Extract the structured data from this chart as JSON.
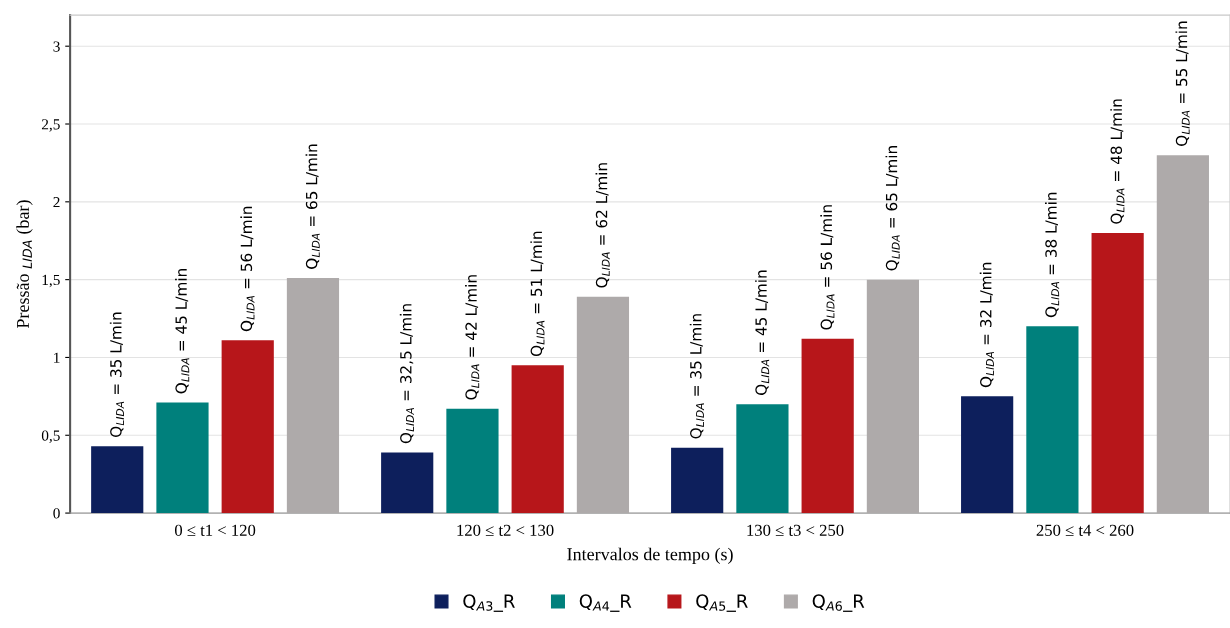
{
  "chart_data": {
    "type": "bar",
    "xlabel": "Intervalos de tempo (s)",
    "ylabel": "Pressão $_{LIDA}$ (bar)",
    "categories": [
      "0 ≤ t1 < 120",
      "120 ≤ t2 < 130",
      "130 ≤ t3 < 250",
      "250 ≤ t4 < 260"
    ],
    "series": [
      {
        "name": "Q$_{A3}$_R",
        "color": "#0d1f5c",
        "values": [
          0.43,
          0.39,
          0.42,
          0.75
        ]
      },
      {
        "name": "Q$_{A4}$_R",
        "color": "#00807c",
        "values": [
          0.71,
          0.67,
          0.7,
          1.2
        ]
      },
      {
        "name": "Q$_{A5}$_R",
        "color": "#b7161a",
        "values": [
          1.11,
          0.95,
          1.12,
          1.8
        ]
      },
      {
        "name": "Q$_{A6}$_R",
        "color": "#aeaaaa",
        "values": [
          1.51,
          1.39,
          1.5,
          2.3
        ]
      }
    ],
    "annotations": [
      "Q$_{LIDA}$ = 35 L/min",
      "Q$_{LIDA}$ = 45 L/min",
      "Q$_{LIDA}$ = 56 L/min",
      "Q$_{LIDA}$ = 65 L/min",
      "Q$_{LIDA}$ = 32,5 L/min",
      "Q$_{LIDA}$ = 42 L/min",
      "Q$_{LIDA}$ = 51 L/min",
      "Q$_{LIDA}$ = 62 L/min",
      "Q$_{LIDA}$ = 35 L/min",
      "Q$_{LIDA}$ = 45 L/min",
      "Q$_{LIDA}$ = 56 L/min",
      "Q$_{LIDA}$ = 65 L/min",
      "Q$_{LIDA}$ = 32 L/min",
      "Q$_{LIDA}$ = 38 L/min",
      "Q$_{LIDA}$ = 48 L/min",
      "Q$_{LIDA}$ = 55 L/min"
    ],
    "ylim": [
      0,
      3.2
    ],
    "yticks": [
      0,
      {
        "value": 0.5,
        "label": "0,5"
      },
      1,
      {
        "value": 1.5,
        "label": "1,5"
      },
      2,
      {
        "value": 2.5,
        "label": "2,5"
      },
      3
    ],
    "grid": "y",
    "legend": "bottom"
  }
}
